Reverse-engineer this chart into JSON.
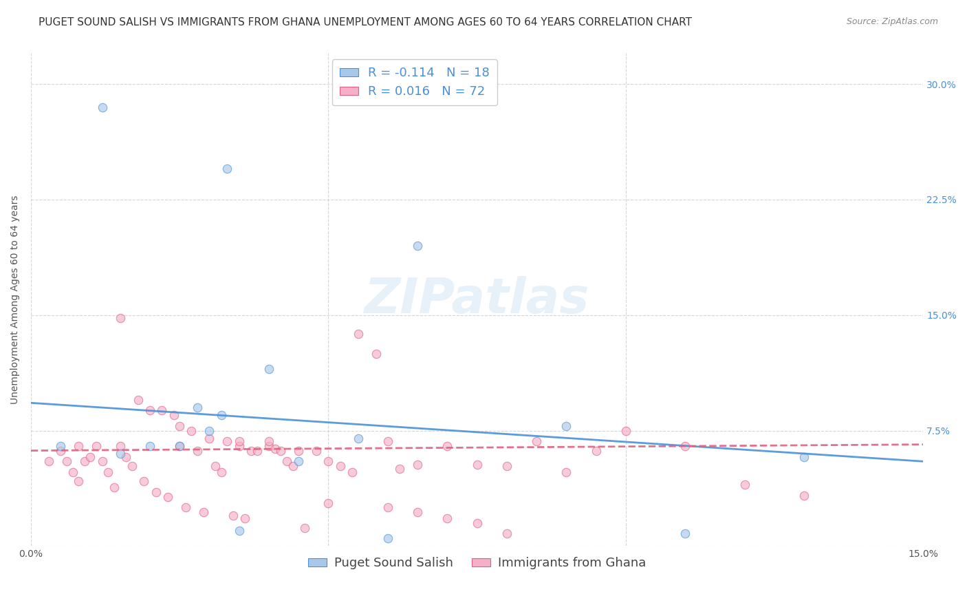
{
  "title": "PUGET SOUND SALISH VS IMMIGRANTS FROM GHANA UNEMPLOYMENT AMONG AGES 60 TO 64 YEARS CORRELATION CHART",
  "source": "Source: ZipAtlas.com",
  "ylabel": "Unemployment Among Ages 60 to 64 years",
  "xlim": [
    0.0,
    0.15
  ],
  "ylim": [
    0.0,
    0.32
  ],
  "blue_color": "#a8c8e8",
  "pink_color": "#f4b0c8",
  "blue_line_color": "#4a90d9",
  "pink_line_color": "#e06080",
  "legend_r_blue": "-0.114",
  "legend_n_blue": "18",
  "legend_r_pink": "0.016",
  "legend_n_pink": "72",
  "watermark": "ZIPatlas",
  "blue_scatter_x": [
    0.012,
    0.033,
    0.005,
    0.015,
    0.02,
    0.025,
    0.028,
    0.03,
    0.032,
    0.04,
    0.045,
    0.055,
    0.065,
    0.09,
    0.11,
    0.13,
    0.035,
    0.06
  ],
  "blue_scatter_y": [
    0.285,
    0.245,
    0.065,
    0.06,
    0.065,
    0.065,
    0.09,
    0.075,
    0.085,
    0.115,
    0.055,
    0.07,
    0.195,
    0.078,
    0.008,
    0.058,
    0.01,
    0.005
  ],
  "pink_scatter_x": [
    0.003,
    0.005,
    0.006,
    0.007,
    0.008,
    0.008,
    0.009,
    0.01,
    0.011,
    0.012,
    0.013,
    0.014,
    0.015,
    0.015,
    0.016,
    0.017,
    0.018,
    0.019,
    0.02,
    0.021,
    0.022,
    0.023,
    0.024,
    0.025,
    0.025,
    0.026,
    0.027,
    0.028,
    0.029,
    0.03,
    0.031,
    0.032,
    0.033,
    0.034,
    0.035,
    0.036,
    0.037,
    0.038,
    0.04,
    0.041,
    0.042,
    0.043,
    0.044,
    0.045,
    0.046,
    0.048,
    0.05,
    0.052,
    0.054,
    0.058,
    0.06,
    0.062,
    0.065,
    0.07,
    0.075,
    0.08,
    0.085,
    0.09,
    0.095,
    0.1,
    0.11,
    0.12,
    0.13,
    0.035,
    0.04,
    0.05,
    0.055,
    0.06,
    0.065,
    0.07,
    0.075,
    0.08
  ],
  "pink_scatter_y": [
    0.055,
    0.062,
    0.055,
    0.048,
    0.065,
    0.042,
    0.055,
    0.058,
    0.065,
    0.055,
    0.048,
    0.038,
    0.148,
    0.065,
    0.058,
    0.052,
    0.095,
    0.042,
    0.088,
    0.035,
    0.088,
    0.032,
    0.085,
    0.078,
    0.065,
    0.025,
    0.075,
    0.062,
    0.022,
    0.07,
    0.052,
    0.048,
    0.068,
    0.02,
    0.065,
    0.018,
    0.062,
    0.062,
    0.065,
    0.063,
    0.062,
    0.055,
    0.052,
    0.062,
    0.012,
    0.062,
    0.055,
    0.052,
    0.048,
    0.125,
    0.068,
    0.05,
    0.053,
    0.065,
    0.053,
    0.052,
    0.068,
    0.048,
    0.062,
    0.075,
    0.065,
    0.04,
    0.033,
    0.068,
    0.068,
    0.028,
    0.138,
    0.025,
    0.022,
    0.018,
    0.015,
    0.008
  ],
  "title_fontsize": 11,
  "source_fontsize": 9,
  "axis_label_fontsize": 10,
  "tick_fontsize": 10,
  "legend_fontsize": 13,
  "watermark_fontsize": 52,
  "watermark_color": "#d8e8f5",
  "background_color": "#ffffff",
  "grid_color": "#cccccc",
  "scatter_size": 80,
  "scatter_alpha": 0.65,
  "line_width": 2.0,
  "blue_line_x0": 0.0,
  "blue_line_y0": 0.093,
  "blue_line_x1": 0.15,
  "blue_line_y1": 0.055,
  "pink_line_x0": 0.0,
  "pink_line_y0": 0.062,
  "pink_line_x1": 0.15,
  "pink_line_y1": 0.066
}
